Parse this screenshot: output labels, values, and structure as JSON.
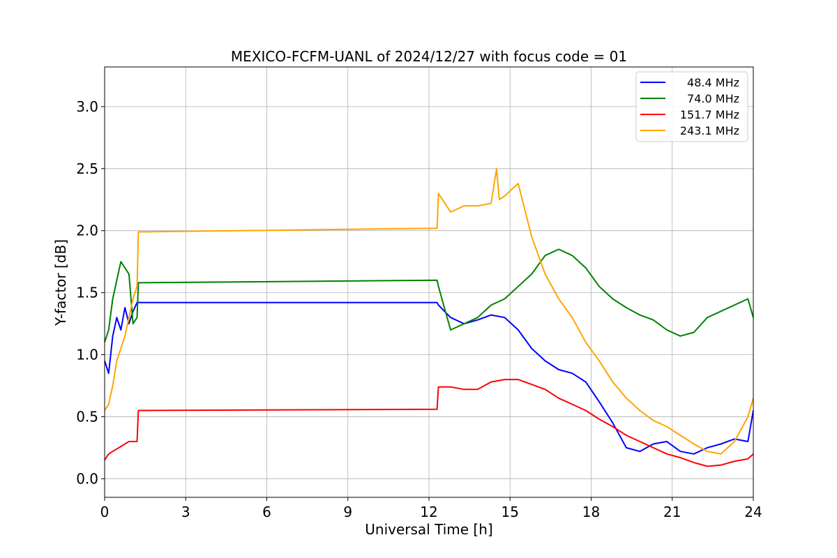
{
  "chart_data": {
    "type": "line",
    "title": "MEXICO-FCFM-UANL of 2024/12/27 with focus code = 01",
    "xlabel": "Universal Time [h]",
    "ylabel": "Y-factor [dB]",
    "xlim": [
      0,
      24
    ],
    "ylim": [
      -0.15,
      3.32
    ],
    "x_ticks": [
      "0",
      "3",
      "6",
      "9",
      "12",
      "15",
      "18",
      "21",
      "24"
    ],
    "y_ticks": [
      "0.0",
      "0.5",
      "1.0",
      "1.5",
      "2.0",
      "2.5",
      "3.0"
    ],
    "grid": true,
    "legend_position": "top-right",
    "series": [
      {
        "name": "48.4 MHz",
        "color": "#0000ff",
        "points": [
          [
            0,
            0.95
          ],
          [
            0.15,
            0.85
          ],
          [
            0.3,
            1.15
          ],
          [
            0.45,
            1.3
          ],
          [
            0.6,
            1.2
          ],
          [
            0.75,
            1.38
          ],
          [
            0.9,
            1.25
          ],
          [
            1.05,
            1.35
          ],
          [
            1.2,
            1.42
          ],
          [
            1.25,
            1.42
          ],
          [
            12.3,
            1.42
          ],
          [
            12.35,
            1.4
          ],
          [
            12.8,
            1.3
          ],
          [
            13.3,
            1.25
          ],
          [
            13.8,
            1.28
          ],
          [
            14.3,
            1.32
          ],
          [
            14.8,
            1.3
          ],
          [
            15.3,
            1.2
          ],
          [
            15.8,
            1.05
          ],
          [
            16.3,
            0.95
          ],
          [
            16.8,
            0.88
          ],
          [
            17.3,
            0.85
          ],
          [
            17.8,
            0.78
          ],
          [
            18.3,
            0.62
          ],
          [
            18.8,
            0.45
          ],
          [
            19.3,
            0.25
          ],
          [
            19.8,
            0.22
          ],
          [
            20.3,
            0.28
          ],
          [
            20.8,
            0.3
          ],
          [
            21.3,
            0.22
          ],
          [
            21.8,
            0.2
          ],
          [
            22.3,
            0.25
          ],
          [
            22.8,
            0.28
          ],
          [
            23.3,
            0.32
          ],
          [
            23.8,
            0.3
          ],
          [
            24,
            0.55
          ]
        ]
      },
      {
        "name": "74.0 MHz",
        "color": "#008000",
        "points": [
          [
            0,
            1.1
          ],
          [
            0.15,
            1.2
          ],
          [
            0.3,
            1.45
          ],
          [
            0.45,
            1.6
          ],
          [
            0.6,
            1.75
          ],
          [
            0.75,
            1.7
          ],
          [
            0.9,
            1.65
          ],
          [
            1.05,
            1.25
          ],
          [
            1.2,
            1.3
          ],
          [
            1.25,
            1.58
          ],
          [
            12.3,
            1.6
          ],
          [
            12.35,
            1.55
          ],
          [
            12.8,
            1.2
          ],
          [
            13.3,
            1.25
          ],
          [
            13.8,
            1.3
          ],
          [
            14.3,
            1.4
          ],
          [
            14.8,
            1.45
          ],
          [
            15.3,
            1.55
          ],
          [
            15.8,
            1.65
          ],
          [
            16.3,
            1.8
          ],
          [
            16.8,
            1.85
          ],
          [
            17.3,
            1.8
          ],
          [
            17.8,
            1.7
          ],
          [
            18.3,
            1.55
          ],
          [
            18.8,
            1.45
          ],
          [
            19.3,
            1.38
          ],
          [
            19.8,
            1.32
          ],
          [
            20.3,
            1.28
          ],
          [
            20.8,
            1.2
          ],
          [
            21.3,
            1.15
          ],
          [
            21.8,
            1.18
          ],
          [
            22.3,
            1.3
          ],
          [
            22.8,
            1.35
          ],
          [
            23.3,
            1.4
          ],
          [
            23.8,
            1.45
          ],
          [
            24,
            1.3
          ]
        ]
      },
      {
        "name": "151.7 MHz",
        "color": "#ff0000",
        "points": [
          [
            0,
            0.15
          ],
          [
            0.15,
            0.2
          ],
          [
            0.3,
            0.22
          ],
          [
            0.45,
            0.24
          ],
          [
            0.6,
            0.26
          ],
          [
            0.75,
            0.28
          ],
          [
            0.9,
            0.3
          ],
          [
            1.05,
            0.3
          ],
          [
            1.2,
            0.3
          ],
          [
            1.25,
            0.55
          ],
          [
            12.3,
            0.56
          ],
          [
            12.35,
            0.74
          ],
          [
            12.8,
            0.74
          ],
          [
            13.3,
            0.72
          ],
          [
            13.8,
            0.72
          ],
          [
            14.3,
            0.78
          ],
          [
            14.8,
            0.8
          ],
          [
            15.3,
            0.8
          ],
          [
            15.8,
            0.76
          ],
          [
            16.3,
            0.72
          ],
          [
            16.8,
            0.65
          ],
          [
            17.3,
            0.6
          ],
          [
            17.8,
            0.55
          ],
          [
            18.3,
            0.48
          ],
          [
            18.8,
            0.42
          ],
          [
            19.3,
            0.35
          ],
          [
            19.8,
            0.3
          ],
          [
            20.3,
            0.25
          ],
          [
            20.8,
            0.2
          ],
          [
            21.3,
            0.17
          ],
          [
            21.8,
            0.13
          ],
          [
            22.3,
            0.1
          ],
          [
            22.8,
            0.11
          ],
          [
            23.3,
            0.14
          ],
          [
            23.8,
            0.16
          ],
          [
            24,
            0.2
          ]
        ]
      },
      {
        "name": "243.1 MHz",
        "color": "#ffa500",
        "points": [
          [
            0,
            0.55
          ],
          [
            0.15,
            0.6
          ],
          [
            0.3,
            0.75
          ],
          [
            0.45,
            0.95
          ],
          [
            0.6,
            1.05
          ],
          [
            0.75,
            1.15
          ],
          [
            0.9,
            1.3
          ],
          [
            1.05,
            1.45
          ],
          [
            1.2,
            1.55
          ],
          [
            1.25,
            1.99
          ],
          [
            12.3,
            2.02
          ],
          [
            12.35,
            2.3
          ],
          [
            12.8,
            2.15
          ],
          [
            13.3,
            2.2
          ],
          [
            13.8,
            2.2
          ],
          [
            14.3,
            2.22
          ],
          [
            14.5,
            2.5
          ],
          [
            14.6,
            2.25
          ],
          [
            14.8,
            2.28
          ],
          [
            15.3,
            2.38
          ],
          [
            15.8,
            1.95
          ],
          [
            16.3,
            1.65
          ],
          [
            16.8,
            1.45
          ],
          [
            17.3,
            1.3
          ],
          [
            17.8,
            1.1
          ],
          [
            18.3,
            0.95
          ],
          [
            18.8,
            0.78
          ],
          [
            19.3,
            0.65
          ],
          [
            19.8,
            0.55
          ],
          [
            20.3,
            0.47
          ],
          [
            20.8,
            0.42
          ],
          [
            21.3,
            0.35
          ],
          [
            21.8,
            0.28
          ],
          [
            22.3,
            0.22
          ],
          [
            22.8,
            0.2
          ],
          [
            23.3,
            0.3
          ],
          [
            23.8,
            0.5
          ],
          [
            24,
            0.65
          ]
        ]
      }
    ]
  }
}
